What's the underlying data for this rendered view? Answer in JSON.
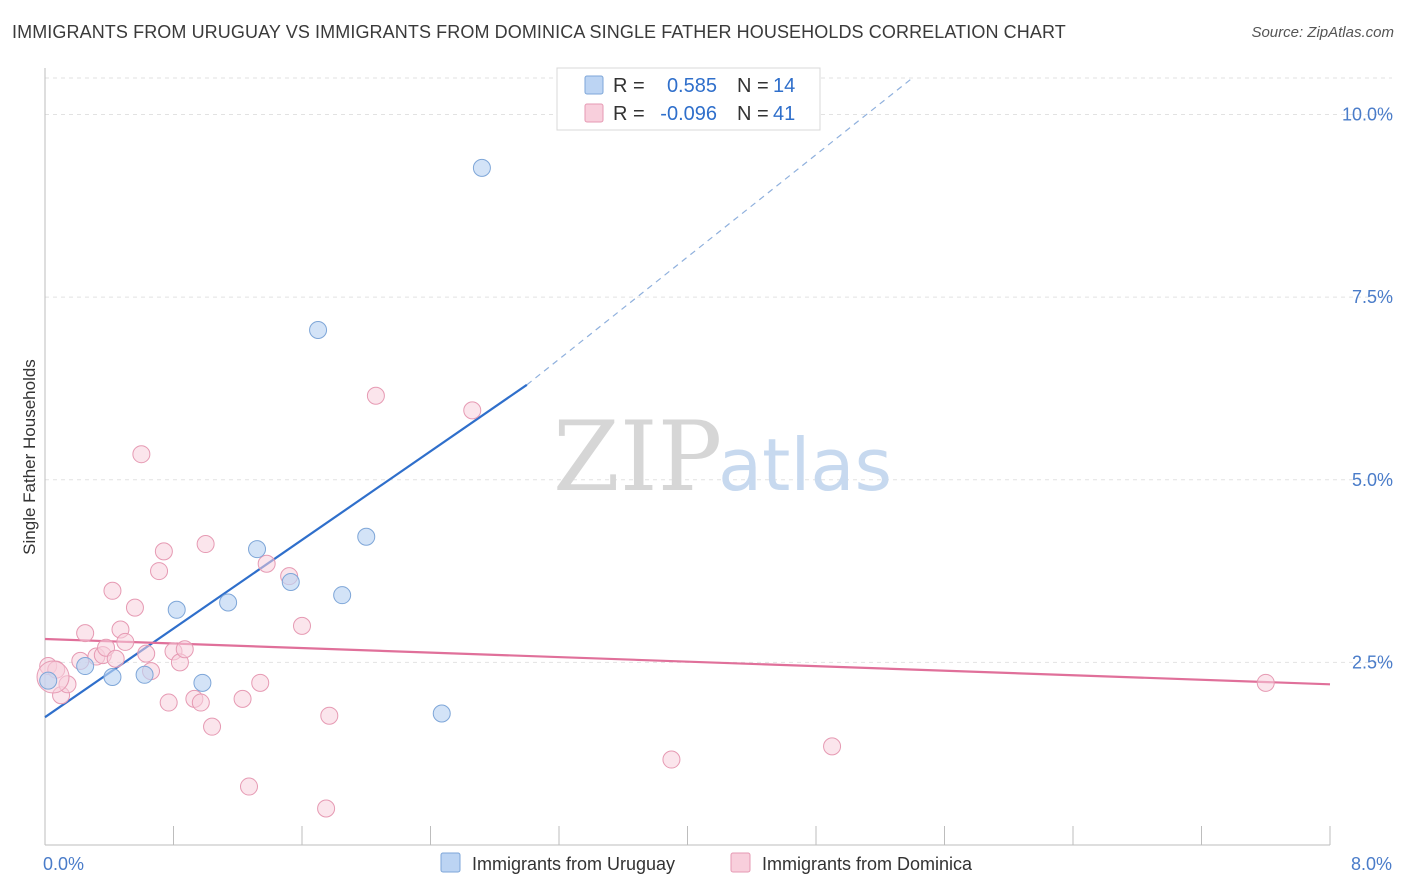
{
  "title": "IMMIGRANTS FROM URUGUAY VS IMMIGRANTS FROM DOMINICA SINGLE FATHER HOUSEHOLDS CORRELATION CHART",
  "source": "Source: ZipAtlas.com",
  "watermark": {
    "zip": "ZIP",
    "atlas": "atlas"
  },
  "legend": {
    "r_label": "R =",
    "n_label": "N =",
    "rows": [
      {
        "r": "0.585",
        "n": "14",
        "color": "#a8c8f0"
      },
      {
        "r": "-0.096",
        "n": "41",
        "color": "#f6b8ca"
      }
    ]
  },
  "colors": {
    "uruguay_fill": "#bcd4f3",
    "uruguay_stroke": "#7ea6d8",
    "uruguay_line": "#2f6fcb",
    "dominica_fill": "#f8cfdc",
    "dominica_stroke": "#e69ab3",
    "dominica_line": "#e0709a",
    "grid": "#e2e2e2",
    "tick": "#4a7cc9"
  },
  "chart_data": {
    "type": "scatter",
    "title": "IMMIGRANTS FROM URUGUAY VS IMMIGRANTS FROM DOMINICA SINGLE FATHER HOUSEHOLDS CORRELATION CHART",
    "xlabel": "",
    "ylabel": "Single Father Households",
    "xlim": [
      0,
      8
    ],
    "ylim": [
      0,
      10.5
    ],
    "x_tick_labels": [
      "0.0%",
      "8.0%"
    ],
    "y_ticks": [
      2.5,
      5.0,
      7.5,
      10.0
    ],
    "y_tick_labels": [
      "2.5%",
      "5.0%",
      "7.5%",
      "10.0%"
    ],
    "grid": "horizontal dashed",
    "legend_placement": "top-center",
    "series": [
      {
        "name": "Immigrants from Uruguay",
        "r": 0.585,
        "n": 14,
        "points": [
          [
            0.02,
            2.25
          ],
          [
            0.25,
            2.45
          ],
          [
            0.42,
            2.3
          ],
          [
            0.62,
            2.33
          ],
          [
            0.82,
            3.22
          ],
          [
            0.98,
            2.22
          ],
          [
            1.14,
            3.32
          ],
          [
            1.32,
            4.05
          ],
          [
            1.53,
            3.6
          ],
          [
            1.7,
            7.05
          ],
          [
            1.85,
            3.42
          ],
          [
            2.0,
            4.22
          ],
          [
            2.47,
            1.8
          ],
          [
            2.72,
            9.27
          ]
        ],
        "trend": {
          "x0": 0.0,
          "y0": 1.75,
          "x1": 3.0,
          "y1": 6.3,
          "dash_to_x": 5.4,
          "dash_to_y": 10.5
        }
      },
      {
        "name": "Immigrants from Dominica",
        "r": -0.096,
        "n": 41,
        "points": [
          [
            0.02,
            2.45
          ],
          [
            0.07,
            2.4
          ],
          [
            0.1,
            2.05
          ],
          [
            0.14,
            2.2
          ],
          [
            0.22,
            2.52
          ],
          [
            0.25,
            2.9
          ],
          [
            0.32,
            2.58
          ],
          [
            0.36,
            2.6
          ],
          [
            0.38,
            2.7
          ],
          [
            0.42,
            3.48
          ],
          [
            0.44,
            2.55
          ],
          [
            0.47,
            2.95
          ],
          [
            0.5,
            2.78
          ],
          [
            0.56,
            3.25
          ],
          [
            0.6,
            5.35
          ],
          [
            0.63,
            2.62
          ],
          [
            0.66,
            2.38
          ],
          [
            0.71,
            3.75
          ],
          [
            0.74,
            4.02
          ],
          [
            0.77,
            1.95
          ],
          [
            0.8,
            2.65
          ],
          [
            0.84,
            2.5
          ],
          [
            0.87,
            2.68
          ],
          [
            0.93,
            2.0
          ],
          [
            0.97,
            1.95
          ],
          [
            1.0,
            4.12
          ],
          [
            1.04,
            1.62
          ],
          [
            1.23,
            2.0
          ],
          [
            1.27,
            0.8
          ],
          [
            1.34,
            2.22
          ],
          [
            1.38,
            3.85
          ],
          [
            1.52,
            3.68
          ],
          [
            1.6,
            3.0
          ],
          [
            1.75,
            0.5
          ],
          [
            1.77,
            1.77
          ],
          [
            2.06,
            6.15
          ],
          [
            2.66,
            5.95
          ],
          [
            3.9,
            1.17
          ],
          [
            4.9,
            1.35
          ],
          [
            7.6,
            2.22
          ],
          [
            0.05,
            2.3
          ]
        ],
        "trend": {
          "x0": 0.0,
          "y0": 2.82,
          "x1": 8.0,
          "y1": 2.2
        }
      }
    ]
  }
}
